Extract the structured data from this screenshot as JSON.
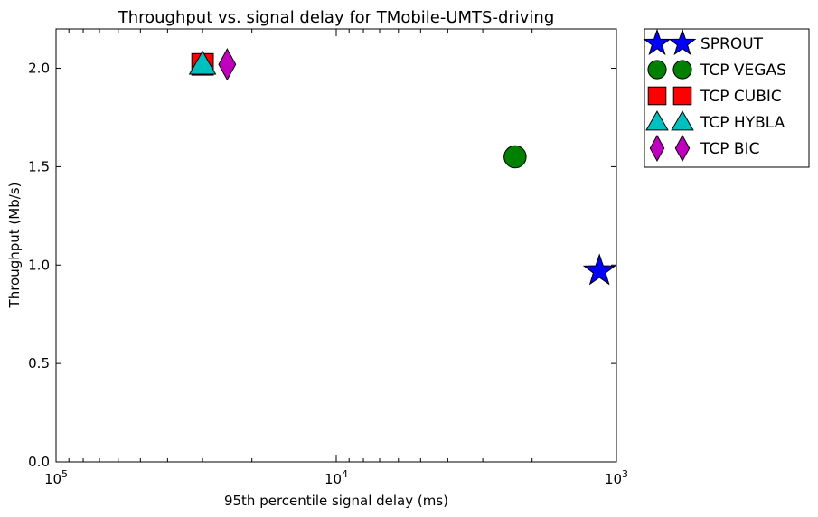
{
  "chart_data": {
    "type": "scatter",
    "title": "Throughput vs. signal delay for TMobile-UMTS-driving",
    "xlabel": "95th percentile signal delay (ms)",
    "ylabel": "Throughput (Mb/s)",
    "x_scale": "log",
    "x_inverted": true,
    "xlim": [
      100000,
      1000
    ],
    "ylim": [
      0.0,
      2.2
    ],
    "x_ticks": [
      {
        "value": 100000,
        "base": "10",
        "exp": "5"
      },
      {
        "value": 10000,
        "base": "10",
        "exp": "4"
      },
      {
        "value": 1000,
        "base": "10",
        "exp": "3"
      }
    ],
    "y_ticks": [
      {
        "value": 0.0,
        "label": "0.0"
      },
      {
        "value": 0.5,
        "label": "0.5"
      },
      {
        "value": 1.0,
        "label": "1.0"
      },
      {
        "value": 1.5,
        "label": "1.5"
      },
      {
        "value": 2.0,
        "label": "2.0"
      }
    ],
    "grid": false,
    "legend": "outside-top-right",
    "series": [
      {
        "name": "SPROUT",
        "marker": "star",
        "color": "#0000ff",
        "x": 1150,
        "y": 0.97
      },
      {
        "name": "TCP VEGAS",
        "marker": "circle",
        "color": "#008000",
        "x": 2300,
        "y": 1.55
      },
      {
        "name": "TCP CUBIC",
        "marker": "square",
        "color": "#ff0000",
        "x": 30000,
        "y": 2.02
      },
      {
        "name": "TCP HYBLA",
        "marker": "triangle",
        "color": "#00bfbf",
        "x": 30000,
        "y": 2.02
      },
      {
        "name": "TCP BIC",
        "marker": "diamond",
        "color": "#bf00bf",
        "x": 24500,
        "y": 2.02
      }
    ]
  }
}
